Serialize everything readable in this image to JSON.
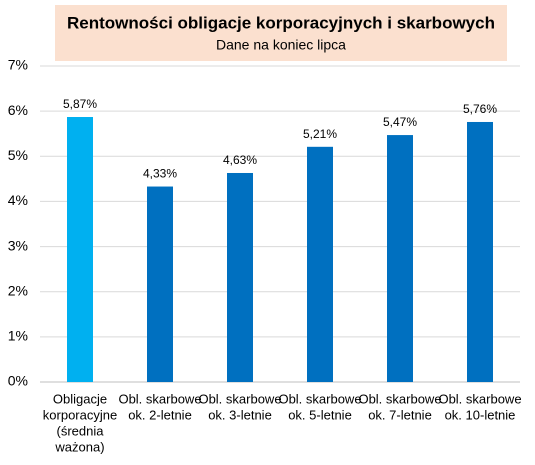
{
  "chart_data": {
    "type": "bar",
    "title": "Rentowności obligacje korporacyjnych i skarbowych",
    "subtitle": "Dane na koniec lipca",
    "categories": [
      [
        "Obligacje",
        "korporacyjne",
        "(średnia",
        "ważona)"
      ],
      [
        "Obl. skarbowe",
        "ok. 2-letnie"
      ],
      [
        "Obl. skarbowe",
        "ok. 3-letnie"
      ],
      [
        "Obl. skarbowe",
        "ok. 5-letnie"
      ],
      [
        "Obl. skarbowe",
        "ok. 7-letnie"
      ],
      [
        "Obl. skarbowe",
        "ok. 10-letnie"
      ]
    ],
    "values": [
      5.87,
      4.33,
      4.63,
      5.21,
      5.47,
      5.76
    ],
    "value_labels": [
      "5,87%",
      "4,33%",
      "4,63%",
      "5,21%",
      "5,47%",
      "5,76%"
    ],
    "colors": [
      "#00b0f0",
      "#0070c0",
      "#0070c0",
      "#0070c0",
      "#0070c0",
      "#0070c0"
    ],
    "ylim": [
      0,
      7
    ],
    "yticks": [
      {
        "value": 0,
        "label": "0%"
      },
      {
        "value": 1,
        "label": "1%"
      },
      {
        "value": 2,
        "label": "2%"
      },
      {
        "value": 3,
        "label": "3%"
      },
      {
        "value": 4,
        "label": "4%"
      },
      {
        "value": 5,
        "label": "5%"
      },
      {
        "value": 6,
        "label": "6%"
      },
      {
        "value": 7,
        "label": "7%"
      }
    ],
    "grid": true
  }
}
